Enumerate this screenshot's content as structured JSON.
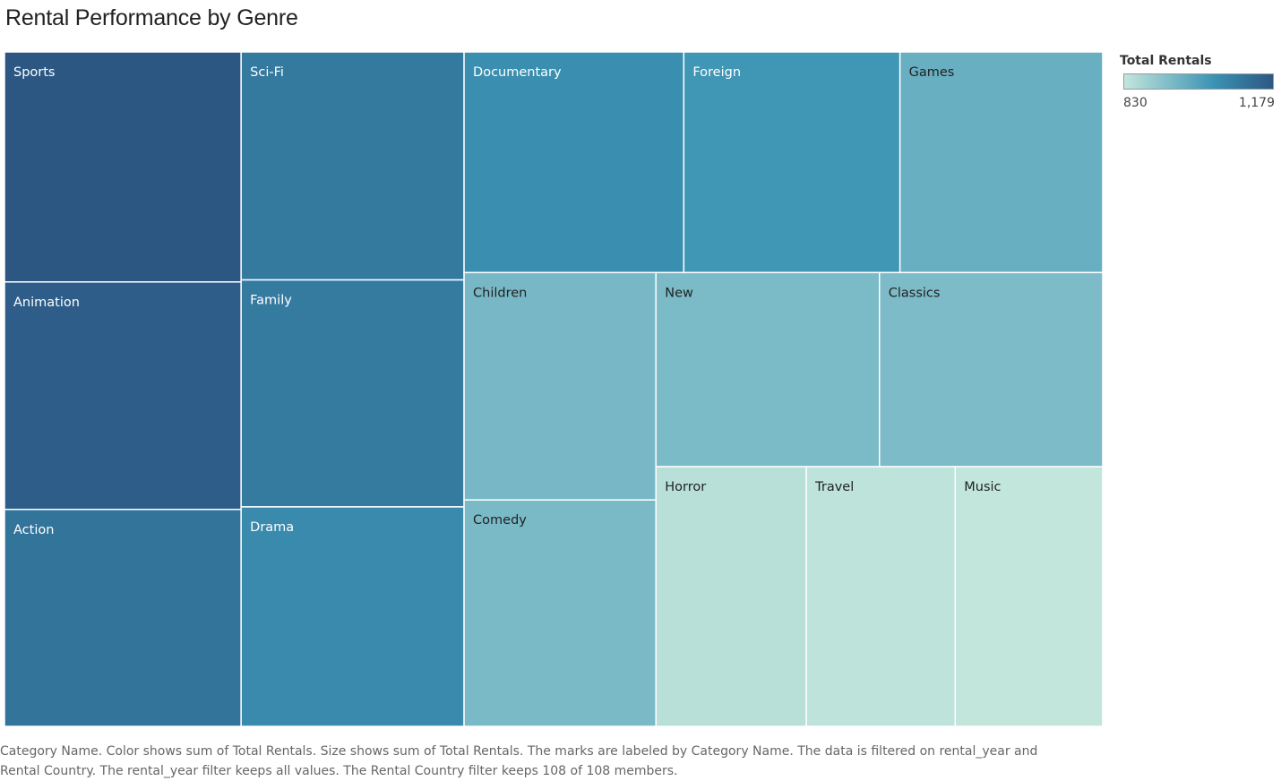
{
  "title": "Rental Performance by Genre",
  "legend": {
    "title": "Total Rentals",
    "min_label": "830",
    "max_label": "1,179",
    "min_value": 830,
    "max_value": 1179,
    "color_low": "#c2e6dc",
    "color_mid": "#3b93b4",
    "color_high": "#2c5783"
  },
  "caption": {
    "line1": "Category Name.  Color shows sum of Total Rentals.  Size shows sum of Total Rentals.  The marks are labeled by Category Name. The data is filtered on rental_year and",
    "line2": "Rental Country. The rental_year filter keeps all values. The Rental Country filter keeps 108 of 108 members."
  },
  "chart_data": {
    "type": "treemap",
    "size_measure": "Total Rentals",
    "color_measure": "Total Rentals",
    "items": [
      {
        "name": "Sports",
        "value": 1179
      },
      {
        "name": "Animation",
        "value": 1166
      },
      {
        "name": "Action",
        "value": 1112
      },
      {
        "name": "Sci-Fi",
        "value": 1101
      },
      {
        "name": "Family",
        "value": 1096
      },
      {
        "name": "Drama",
        "value": 1060
      },
      {
        "name": "Documentary",
        "value": 1050
      },
      {
        "name": "Foreign",
        "value": 1033
      },
      {
        "name": "Games",
        "value": 969
      },
      {
        "name": "Children",
        "value": 945
      },
      {
        "name": "Comedy",
        "value": 941
      },
      {
        "name": "New",
        "value": 940
      },
      {
        "name": "Classics",
        "value": 939
      },
      {
        "name": "Horror",
        "value": 846
      },
      {
        "name": "Travel",
        "value": 837
      },
      {
        "name": "Music",
        "value": 830
      }
    ]
  }
}
